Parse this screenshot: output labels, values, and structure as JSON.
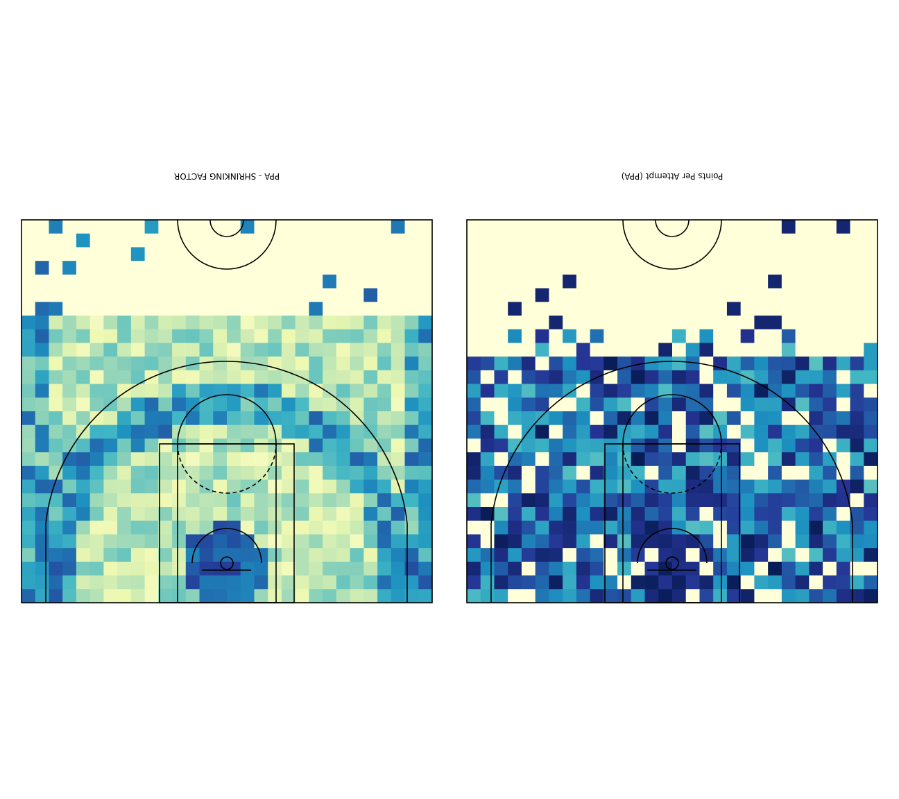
{
  "chart_data": [
    {
      "type": "heatmap",
      "title": "PPA - SHRINKING FACTOR",
      "title_orientation": "upside-down",
      "colormap": "YlGnBu",
      "background": "basketball half court",
      "grid_columns": 30,
      "grid_rows": 28,
      "value_range": [
        0,
        1
      ],
      "legend": "none",
      "grid": false
    },
    {
      "type": "heatmap",
      "title": "Points Per Attempt (PPA)",
      "title_orientation": "upside-down",
      "colormap": "YlGnBu",
      "background": "basketball half court",
      "grid_columns": 30,
      "grid_rows": 28,
      "value_range": [
        0,
        1
      ],
      "legend": "none",
      "grid": false
    }
  ]
}
